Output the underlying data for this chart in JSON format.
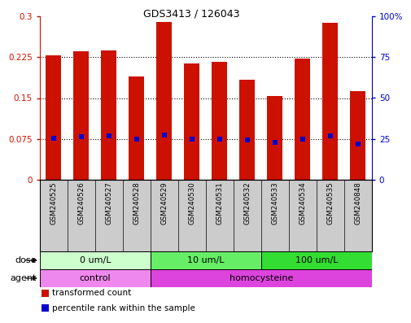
{
  "title": "GDS3413 / 126043",
  "samples": [
    "GSM240525",
    "GSM240526",
    "GSM240527",
    "GSM240528",
    "GSM240529",
    "GSM240530",
    "GSM240531",
    "GSM240532",
    "GSM240533",
    "GSM240534",
    "GSM240535",
    "GSM240848"
  ],
  "bar_values": [
    0.228,
    0.236,
    0.238,
    0.19,
    0.29,
    0.213,
    0.216,
    0.183,
    0.153,
    0.222,
    0.288,
    0.162
  ],
  "percentile_values": [
    25.2,
    26.3,
    26.7,
    24.9,
    27.3,
    24.9,
    25.0,
    24.2,
    22.8,
    24.7,
    26.7,
    22.0
  ],
  "ylim_left": [
    0,
    0.3
  ],
  "ylim_right": [
    0,
    100
  ],
  "yticks_left": [
    0,
    0.075,
    0.15,
    0.225,
    0.3
  ],
  "ytick_labels_left": [
    "0",
    "0.075",
    "0.15",
    "0.225",
    "0.3"
  ],
  "yticks_right": [
    0,
    25,
    50,
    75,
    100
  ],
  "ytick_labels_right": [
    "0",
    "25",
    "50",
    "75",
    "100%"
  ],
  "bar_color": "#cc1100",
  "dot_color": "#0000cc",
  "bg_color": "#ffffff",
  "sample_bg": "#cccccc",
  "dose_groups": [
    {
      "label": "0 um/L",
      "start": 0,
      "end": 4,
      "color": "#ccffcc"
    },
    {
      "label": "10 um/L",
      "start": 4,
      "end": 8,
      "color": "#66ee66"
    },
    {
      "label": "100 um/L",
      "start": 8,
      "end": 12,
      "color": "#33dd33"
    }
  ],
  "agent_groups": [
    {
      "label": "control",
      "start": 0,
      "end": 4,
      "color": "#ee88ee"
    },
    {
      "label": "homocysteine",
      "start": 4,
      "end": 12,
      "color": "#dd44dd"
    }
  ],
  "dose_label": "dose",
  "agent_label": "agent",
  "legend_items": [
    {
      "label": "transformed count",
      "color": "#cc1100"
    },
    {
      "label": "percentile rank within the sample",
      "color": "#0000cc"
    }
  ]
}
